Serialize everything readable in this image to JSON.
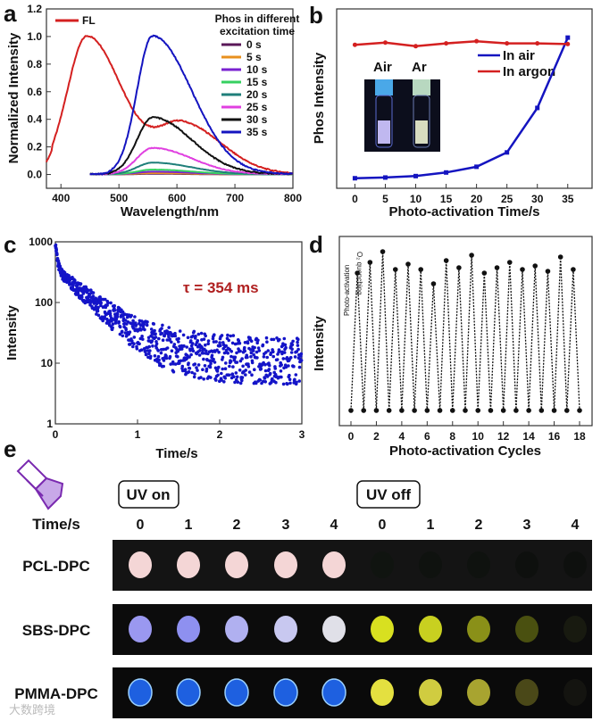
{
  "panel_labels": [
    "a",
    "b",
    "c",
    "d",
    "e"
  ],
  "chart_data": [
    {
      "type": "line",
      "panel": "a",
      "xlabel": "Wavelength/nm",
      "ylabel": "Normalized Intensity",
      "xlim": [
        375,
        800
      ],
      "ylim": [
        -0.1,
        1.2
      ],
      "xticks": [
        "400",
        "500",
        "600",
        "700",
        "800"
      ],
      "yticks": [
        "0.0",
        "0.2",
        "0.4",
        "0.6",
        "0.8",
        "1.0",
        "1.2"
      ],
      "legend_title": [
        "Phos in different",
        "excitation time"
      ],
      "fl": {
        "name": "FL",
        "color": "#d42020",
        "peak_nm": 445,
        "peak": 1.0,
        "shoulder_nm": 610,
        "shoulder": 0.41
      },
      "series": [
        {
          "name": "0 s",
          "color": "#5a1858",
          "peak_nm": 558,
          "peak": 0.005
        },
        {
          "name": "5 s",
          "color": "#e8901e",
          "peak_nm": 558,
          "peak": 0.01
        },
        {
          "name": "10 s",
          "color": "#7a22d0",
          "peak_nm": 558,
          "peak": 0.02
        },
        {
          "name": "15 s",
          "color": "#36d060",
          "peak_nm": 558,
          "peak": 0.035
        },
        {
          "name": "20 s",
          "color": "#1f7f7a",
          "peak_nm": 558,
          "peak": 0.085
        },
        {
          "name": "25 s",
          "color": "#e040e0",
          "peak_nm": 558,
          "peak": 0.19
        },
        {
          "name": "30 s",
          "color": "#111111",
          "peak_nm": 558,
          "peak": 0.41
        },
        {
          "name": "35 s",
          "color": "#1414c0",
          "peak_nm": 558,
          "peak": 1.0
        }
      ]
    },
    {
      "type": "line",
      "panel": "b",
      "xlabel": "Photo-activation Time/s",
      "ylabel": "Phos Intensity",
      "xlim": [
        -3,
        39
      ],
      "ylim": [
        -0.05,
        1.2
      ],
      "x": [
        0,
        5,
        10,
        15,
        20,
        25,
        30,
        35
      ],
      "xticks": [
        "0",
        "5",
        "10",
        "15",
        "20",
        "25",
        "30",
        "35"
      ],
      "series": [
        {
          "name": "In air",
          "color": "#1414c0",
          "values": [
            0.02,
            0.025,
            0.035,
            0.06,
            0.1,
            0.2,
            0.51,
            1.0
          ]
        },
        {
          "name": "In argon",
          "color": "#d42020",
          "values": [
            0.95,
            0.965,
            0.94,
            0.96,
            0.975,
            0.96,
            0.96,
            0.955
          ]
        }
      ],
      "inset_labels": [
        "Air",
        "Ar"
      ]
    },
    {
      "type": "scatter",
      "panel": "c",
      "xlabel": "Time/s",
      "ylabel": "Intensity",
      "yscale": "log",
      "xlim": [
        0,
        3
      ],
      "ylim": [
        1,
        1000
      ],
      "xticks": [
        "0",
        "1",
        "2",
        "3"
      ],
      "yticks": [
        "1",
        "10",
        "100",
        "1000"
      ],
      "annotation": "τ = 354 ms",
      "tau_s": 0.354,
      "color": "#1414c8",
      "n_points": 900
    },
    {
      "type": "line",
      "panel": "d",
      "xlabel": "Photo-activation Cycles",
      "ylabel": "Intensity",
      "xlim": [
        -1,
        19
      ],
      "ylim": [
        0,
        1
      ],
      "xticks": [
        "0",
        "2",
        "4",
        "6",
        "8",
        "10",
        "12",
        "14",
        "16",
        "18"
      ],
      "annotations": [
        "Photo-activation",
        "O₂ quenching"
      ],
      "high_x": [
        0.5,
        1.5,
        2.5,
        3.5,
        4.5,
        5.5,
        6.5,
        7.5,
        8.5,
        9.5,
        10.5,
        11.5,
        12.5,
        13.5,
        14.5,
        15.5,
        16.5,
        17.5
      ],
      "high_values": [
        0.82,
        0.88,
        0.94,
        0.84,
        0.87,
        0.84,
        0.76,
        0.89,
        0.85,
        0.92,
        0.82,
        0.85,
        0.88,
        0.84,
        0.86,
        0.83,
        0.91,
        0.84
      ],
      "low_x": [
        0,
        1,
        2,
        3,
        4,
        5,
        6,
        7,
        8,
        9,
        10,
        11,
        12,
        13,
        14,
        15,
        16,
        17,
        18
      ],
      "low_value": 0.05
    }
  ],
  "panel_e": {
    "uv_on": "UV on",
    "uv_off": "UV off",
    "time_label": "Time/s",
    "times": [
      "0",
      "1",
      "2",
      "3",
      "4",
      "0",
      "1",
      "2",
      "3",
      "4"
    ],
    "rows": [
      {
        "name": "PCL-DPC",
        "colors": [
          "#f4d6d6",
          "#f4d6d6",
          "#f4d6d6",
          "#f4d6d6",
          "#f4d6d6",
          "#101410",
          "#0f120f",
          "#0f120f",
          "#0e100e",
          "#0e100e"
        ],
        "bg": "#141414"
      },
      {
        "name": "SBS-DPC",
        "colors": [
          "#9a98f0",
          "#8e90f0",
          "#b0b0f0",
          "#c8c8f0",
          "#e0e0e8",
          "#d8e020",
          "#c8d020",
          "#8a9018",
          "#4a5010",
          "#181a10"
        ],
        "bg": "#0c0c0c"
      },
      {
        "name": "PMMA-DPC",
        "colors": [
          "#1e60e0",
          "#1e60e0",
          "#1e60e0",
          "#1e60e0",
          "#1e60e0",
          "#e4e040",
          "#d0cc40",
          "#a8a430",
          "#4a4818",
          "#141410"
        ],
        "bg": "#0a0a0a"
      }
    ]
  },
  "watermark": "大数跨境"
}
